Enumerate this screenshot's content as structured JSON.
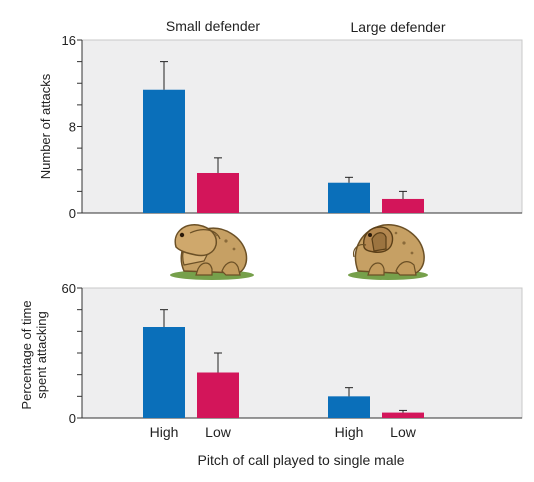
{
  "colors": {
    "high": "#0a6fba",
    "low": "#d3155a",
    "panel": "#eeeeef",
    "panel_border": "#c8c8c8",
    "axis": "#333333"
  },
  "x_axis_label": "Pitch of call played to single male",
  "group_labels": [
    "Small defender",
    "Large defender"
  ],
  "chart_data": [
    {
      "type": "bar",
      "ylabel": "Number of attacks",
      "ylim": [
        0,
        16
      ],
      "yticks": [
        0,
        8,
        16
      ],
      "minor_tick_step": 2,
      "groups": [
        "Small defender",
        "Large defender"
      ],
      "categories": [
        "High",
        "Low"
      ],
      "series": [
        {
          "values": [
            11.4,
            2.8
          ],
          "errors": [
            2.6,
            0.5
          ]
        },
        {
          "values": [
            3.7,
            1.3
          ],
          "errors": [
            1.4,
            0.7
          ]
        }
      ]
    },
    {
      "type": "bar",
      "ylabel": "Percentage of time spent attacking",
      "ylabel_lines": [
        "Percentage of time",
        "spent attacking"
      ],
      "ylim": [
        0,
        60
      ],
      "yticks": [
        0,
        60
      ],
      "minor_tick_step": 10,
      "groups": [
        "Small defender",
        "Large defender"
      ],
      "categories": [
        "High",
        "Low"
      ],
      "series": [
        {
          "values": [
            42,
            10
          ],
          "errors": [
            8,
            4
          ]
        },
        {
          "values": [
            21,
            2.5
          ],
          "errors": [
            9,
            1
          ]
        }
      ]
    }
  ],
  "illustrations": [
    {
      "name": "frog-pair-small-defender-illustration"
    },
    {
      "name": "frog-pair-large-defender-illustration"
    }
  ]
}
